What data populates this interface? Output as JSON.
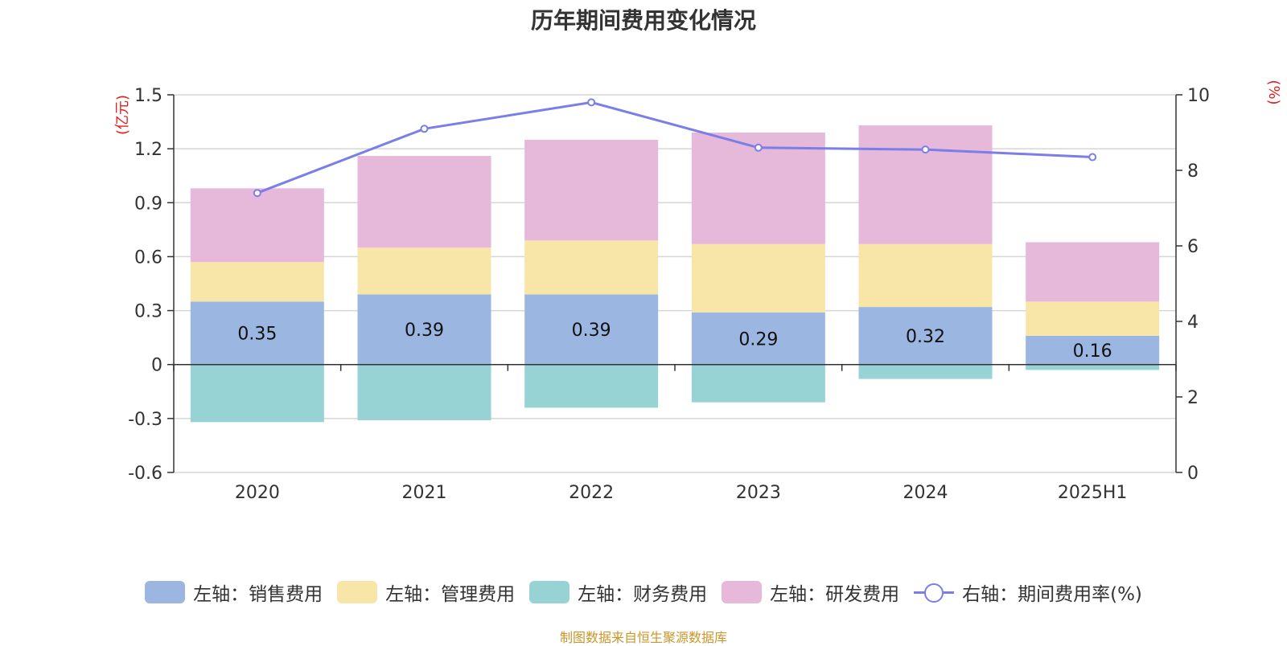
{
  "chart_data": {
    "type": "bar",
    "title": "历年期间费用变化情况",
    "categories": [
      "2020",
      "2021",
      "2022",
      "2023",
      "2024",
      "2025H1"
    ],
    "left_axis": {
      "unit": "(亿元)",
      "range": [
        -0.6,
        1.5
      ],
      "ticks": [
        "-0.6",
        "-0.3",
        "0",
        "0.3",
        "0.6",
        "0.9",
        "1.2",
        "1.5"
      ]
    },
    "right_axis": {
      "unit": "(%)",
      "range": [
        0,
        10
      ],
      "ticks": [
        "0",
        "2",
        "4",
        "6",
        "8",
        "10"
      ]
    },
    "grid": true,
    "legend_position": "bottom",
    "series": [
      {
        "name": "左轴：销售费用",
        "type": "bar",
        "axis": "left",
        "color": "#9ab6e1",
        "values": [
          0.35,
          0.39,
          0.39,
          0.29,
          0.32,
          0.16
        ],
        "data_labels": [
          "0.35",
          "0.39",
          "0.39",
          "0.29",
          "0.32",
          "0.16"
        ]
      },
      {
        "name": "左轴：管理费用",
        "type": "bar",
        "axis": "left",
        "color": "#f8e6a8",
        "values": [
          0.22,
          0.26,
          0.3,
          0.38,
          0.35,
          0.19
        ]
      },
      {
        "name": "左轴：财务费用",
        "type": "bar",
        "axis": "left",
        "color": "#97d3d4",
        "values": [
          -0.32,
          -0.31,
          -0.24,
          -0.21,
          -0.08,
          -0.03
        ]
      },
      {
        "name": "左轴：研发费用",
        "type": "bar",
        "axis": "left",
        "color": "#e6b8d9",
        "values": [
          0.41,
          0.51,
          0.56,
          0.62,
          0.66,
          0.33
        ]
      },
      {
        "name": "右轴：期间费用率(%)",
        "type": "line",
        "axis": "right",
        "color": "#7b7ee8",
        "values": [
          7.4,
          9.1,
          9.8,
          8.6,
          8.55,
          8.35
        ]
      }
    ]
  },
  "source": "制图数据来自恒生聚源数据库"
}
